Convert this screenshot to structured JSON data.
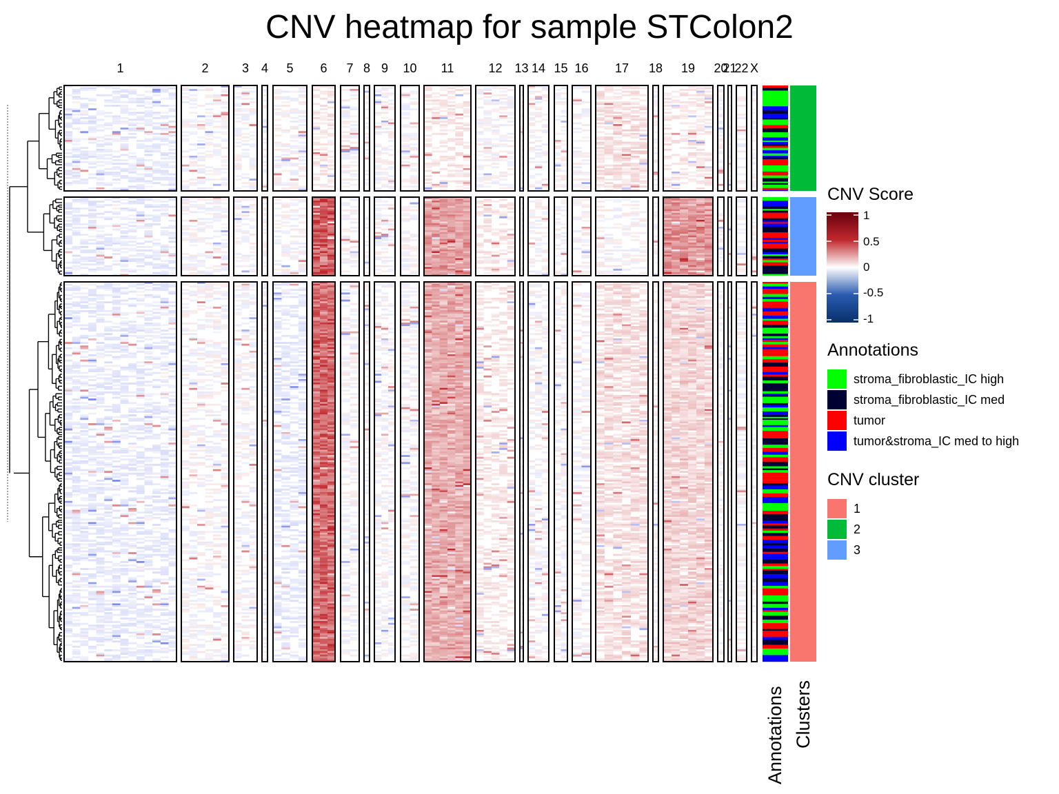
{
  "title": "CNV heatmap for sample STColon2",
  "chart_data": {
    "type": "heatmap",
    "title": "CNV heatmap for sample STColon2",
    "columns": [
      "1",
      "2",
      "3",
      "4",
      "5",
      "6",
      "7",
      "8",
      "9",
      "10",
      "11",
      "12",
      "13",
      "14",
      "15",
      "16",
      "17",
      "18",
      "19",
      "20",
      "21",
      "22",
      "X"
    ],
    "row_groups": [
      {
        "cluster": "2",
        "approx_rows": 60
      },
      {
        "cluster": "3",
        "approx_rows": 45
      },
      {
        "cluster": "1",
        "approx_rows": 215
      }
    ],
    "profiles": {
      "1": {
        "6": 0.55,
        "11": 0.3,
        "17": 0.1,
        "19": 0.15,
        "1": -0.05,
        "5": -0.05,
        "12": 0.05
      },
      "2": {
        "17": 0.1,
        "11": 0.05,
        "6": 0.05,
        "19": 0.05,
        "1": -0.05
      },
      "3": {
        "6": 0.6,
        "11": 0.35,
        "19": 0.4,
        "12": 0.05,
        "1": -0.05
      }
    },
    "color_scale": {
      "title": "CNV Score",
      "range": [
        -1,
        1
      ],
      "ticks": [
        1,
        0.5,
        0,
        -0.5,
        -1
      ],
      "ticks_labels": [
        "1",
        "0.5",
        "0",
        "-0.5",
        "-1"
      ],
      "low": "#08306b",
      "mid": "#ffffff",
      "high": "#67000d"
    },
    "annotations": {
      "title": "Annotations",
      "items": [
        {
          "label": "stroma_fibroblastic_IC high",
          "color": "#00ff00"
        },
        {
          "label": "stroma_fibroblastic_IC med",
          "color": "#000033"
        },
        {
          "label": "tumor",
          "color": "#ff0000"
        },
        {
          "label": "tumor&stroma_IC med to high",
          "color": "#0000ff"
        }
      ]
    },
    "clusters": {
      "title": "CNV cluster",
      "items": [
        {
          "label": "1",
          "color": "#f8766d"
        },
        {
          "label": "2",
          "color": "#00ba38"
        },
        {
          "label": "3",
          "color": "#619cff"
        }
      ]
    },
    "annotation_bar_label": "Annotations",
    "cluster_bar_label": "Clusters"
  }
}
